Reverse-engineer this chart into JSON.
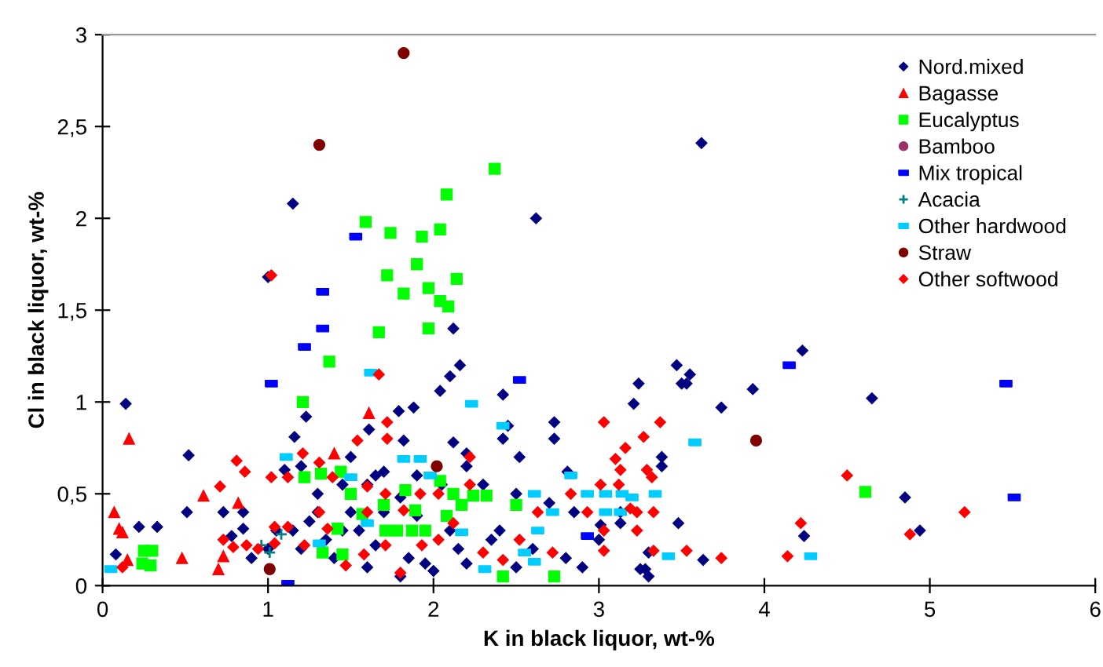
{
  "chart_data": {
    "type": "scatter",
    "xlabel": "K in black liquor, wt-%",
    "ylabel": "Cl in black liquor, wt-%",
    "xlim": [
      0,
      6
    ],
    "xticks": [
      0,
      1,
      2,
      3,
      4,
      5,
      6
    ],
    "ylim": [
      0,
      3
    ],
    "yticks": [
      0,
      {
        "value": 0.5,
        "label": "0,5"
      },
      1,
      {
        "value": 1.5,
        "label": "1,5"
      },
      2,
      {
        "value": 2.5,
        "label": "2,5"
      },
      3
    ],
    "legend": "top right",
    "grid": false,
    "series": [
      {
        "name": "Nord.mixed",
        "color": "#000080",
        "marker": "diamond",
        "x": [
          3.62,
          1.15,
          2.62,
          0.14,
          4.23,
          4.65,
          3.93,
          3.47,
          3.53,
          3.55,
          3.5,
          3.24,
          3.21,
          3.74,
          3.38,
          3.38,
          4.85,
          4.94,
          4.24,
          3.63,
          3.48,
          3.13,
          3.13,
          3.01,
          3.3,
          3.28,
          3.25,
          3.3,
          2.12,
          2.16,
          2.1,
          2.04,
          1.23,
          1.16,
          1.79,
          1.88,
          1.61,
          1.82,
          2.12,
          2.2,
          2.42,
          2.45,
          2.42,
          2.52,
          2.73,
          2.73,
          2.81,
          0.52,
          0.51,
          0.73,
          0.85,
          0.22,
          0.33,
          0.08,
          0.85,
          0.78,
          1.0,
          1.1,
          1.2,
          1.3,
          1.5,
          1.6,
          1.7,
          1.8,
          1.9,
          1.3,
          1.5,
          1.7,
          1.9,
          2.1,
          2.4,
          2.6,
          2.8,
          1.2,
          1.4,
          1.6,
          1.8,
          2.0,
          2.2,
          2.5,
          1.05,
          1.15,
          1.35,
          1.55,
          2.3,
          2.5,
          2.7,
          2.85,
          1.45,
          1.65,
          2.05,
          2.2,
          1.0,
          0.9,
          1.85,
          2.15,
          2.9,
          3.0,
          1.25,
          1.45,
          1.65,
          1.95,
          2.35
        ],
        "values": [
          2.41,
          2.08,
          2.0,
          0.99,
          1.28,
          1.02,
          1.07,
          1.2,
          1.1,
          1.15,
          1.1,
          1.1,
          0.99,
          0.97,
          0.7,
          0.65,
          0.48,
          0.3,
          0.27,
          0.14,
          0.34,
          0.34,
          0.4,
          0.33,
          0.18,
          0.09,
          0.09,
          0.05,
          1.4,
          1.2,
          1.14,
          1.06,
          0.92,
          0.81,
          0.95,
          0.97,
          0.85,
          0.79,
          0.78,
          0.72,
          1.04,
          0.87,
          0.8,
          0.7,
          0.89,
          0.8,
          0.62,
          0.71,
          0.4,
          0.4,
          0.4,
          0.32,
          0.32,
          0.17,
          0.31,
          0.27,
          1.68,
          0.63,
          0.65,
          0.5,
          0.7,
          0.55,
          0.62,
          0.48,
          0.6,
          0.4,
          0.4,
          0.4,
          0.38,
          0.3,
          0.3,
          0.2,
          0.15,
          0.2,
          0.15,
          0.1,
          0.05,
          0.08,
          0.12,
          0.1,
          0.3,
          0.3,
          0.25,
          0.3,
          0.55,
          0.5,
          0.45,
          0.4,
          0.55,
          0.6,
          0.55,
          0.65,
          0.2,
          0.15,
          0.15,
          0.2,
          0.1,
          0.25,
          0.35,
          0.3,
          0.22,
          0.12,
          0.25
        ]
      },
      {
        "name": "Bagasse",
        "color": "#ff0000",
        "marker": "triangle",
        "x": [
          0.07,
          0.16,
          0.1,
          0.12,
          0.61,
          0.82,
          0.7,
          0.73,
          0.48,
          0.15,
          1.61,
          1.4
        ],
        "values": [
          0.4,
          0.8,
          0.31,
          0.29,
          0.49,
          0.45,
          0.09,
          0.16,
          0.15,
          0.14,
          0.94,
          0.72
        ]
      },
      {
        "name": "Eucalyptus",
        "color": "#00ff00",
        "marker": "square",
        "x": [
          2.37,
          2.08,
          1.59,
          1.74,
          1.93,
          2.04,
          1.9,
          1.72,
          2.14,
          1.82,
          1.97,
          2.04,
          2.09,
          1.67,
          1.97,
          1.37,
          1.21,
          0.25,
          0.3,
          0.24,
          0.29,
          1.22,
          1.32,
          1.44,
          1.5,
          1.57,
          1.42,
          1.33,
          1.45,
          1.71,
          1.78,
          1.7,
          1.83,
          1.89,
          2.04,
          2.12,
          2.24,
          2.32,
          2.08,
          1.87,
          1.95,
          2.17,
          2.5,
          2.42,
          2.73,
          4.61
        ],
        "values": [
          2.27,
          2.13,
          1.98,
          1.92,
          1.9,
          1.94,
          1.75,
          1.69,
          1.67,
          1.59,
          1.62,
          1.55,
          1.52,
          1.38,
          1.4,
          1.22,
          1.0,
          0.19,
          0.19,
          0.12,
          0.11,
          0.59,
          0.61,
          0.62,
          0.5,
          0.39,
          0.31,
          0.18,
          0.17,
          0.3,
          0.3,
          0.44,
          0.52,
          0.41,
          0.57,
          0.5,
          0.49,
          0.49,
          0.38,
          0.3,
          0.3,
          0.44,
          0.44,
          0.05,
          0.05,
          0.51
        ]
      },
      {
        "name": "Bamboo",
        "color": "#993366",
        "marker": "circle"
      },
      {
        "name": "Mix tropical",
        "color": "#0000ff",
        "x": [
          1.53,
          1.33,
          1.33,
          1.22,
          1.02,
          2.52,
          1.12,
          2.93,
          4.15,
          5.46,
          5.51
        ],
        "values": [
          1.9,
          1.6,
          1.4,
          1.3,
          1.1,
          1.12,
          0.01,
          0.27,
          1.2,
          1.1,
          0.48
        ]
      },
      {
        "name": "Acacia",
        "color": "#008080",
        "marker": "cross",
        "x": [
          0.96,
          1.01,
          1.08
        ],
        "values": [
          0.22,
          0.18,
          0.28
        ]
      },
      {
        "name": "Other hardwood",
        "color": "#00ccff",
        "x": [
          0.05,
          1.11,
          1.62,
          1.82,
          1.92,
          1.98,
          2.23,
          2.42,
          2.61,
          2.72,
          2.83,
          2.93,
          2.63,
          2.61,
          2.55,
          2.31,
          2.17,
          1.5,
          1.6,
          1.31,
          3.04,
          3.14,
          3.34,
          3.04,
          3.13,
          3.2,
          3.42,
          3.58,
          4.28
        ],
        "values": [
          0.09,
          0.7,
          1.16,
          0.69,
          0.69,
          0.6,
          0.99,
          0.87,
          0.5,
          0.4,
          0.6,
          0.5,
          0.3,
          0.13,
          0.18,
          0.09,
          0.29,
          0.59,
          0.34,
          0.23,
          0.5,
          0.5,
          0.5,
          0.4,
          0.4,
          0.48,
          0.16,
          0.78,
          0.16
        ]
      },
      {
        "name": "Straw",
        "color": "#800000",
        "marker": "circle",
        "x": [
          1.82,
          1.31,
          2.02,
          1.01,
          3.95
        ],
        "values": [
          2.9,
          2.4,
          0.65,
          0.09,
          0.79
        ]
      },
      {
        "name": "Other softwood",
        "color": "#ff0000",
        "marker": "diamond",
        "x": [
          1.02,
          0.12,
          0.71,
          0.81,
          0.86,
          0.73,
          0.79,
          0.87,
          0.94,
          1.04,
          1.12,
          1.04,
          1.02,
          1.12,
          1.21,
          1.31,
          1.39,
          1.54,
          1.67,
          1.72,
          1.72,
          1.6,
          1.71,
          1.92,
          2.03,
          2.12,
          2.22,
          2.22,
          2.3,
          2.42,
          2.52,
          2.63,
          2.72,
          2.83,
          2.93,
          1.47,
          1.58,
          1.71,
          1.8,
          1.93,
          2.03,
          1.31,
          1.36,
          1.6,
          1.82,
          1.22,
          3.03,
          3.37,
          3.27,
          3.16,
          3.1,
          3.13,
          3.29,
          3.32,
          3.01,
          3.12,
          3.19,
          3.23,
          3.33,
          3.03,
          3.23,
          3.03,
          3.33,
          3.53,
          3.74,
          4.14,
          4.22,
          4.5,
          4.88,
          5.21
        ],
        "values": [
          1.69,
          0.1,
          0.54,
          0.68,
          0.62,
          0.25,
          0.21,
          0.22,
          0.2,
          0.32,
          0.32,
          0.23,
          0.59,
          0.59,
          0.72,
          0.67,
          0.59,
          0.79,
          1.15,
          0.89,
          0.8,
          0.54,
          0.5,
          0.5,
          0.5,
          0.34,
          0.55,
          0.7,
          0.18,
          0.14,
          0.25,
          0.4,
          0.18,
          0.5,
          0.4,
          0.11,
          0.17,
          0.22,
          0.07,
          0.22,
          0.25,
          0.4,
          0.31,
          0.4,
          0.41,
          0.22,
          0.89,
          0.89,
          0.81,
          0.75,
          0.69,
          0.63,
          0.63,
          0.59,
          0.55,
          0.55,
          0.42,
          0.4,
          0.4,
          0.3,
          0.3,
          0.19,
          0.19,
          0.19,
          0.15,
          0.16,
          0.34,
          0.6,
          0.28,
          0.4
        ]
      }
    ]
  }
}
